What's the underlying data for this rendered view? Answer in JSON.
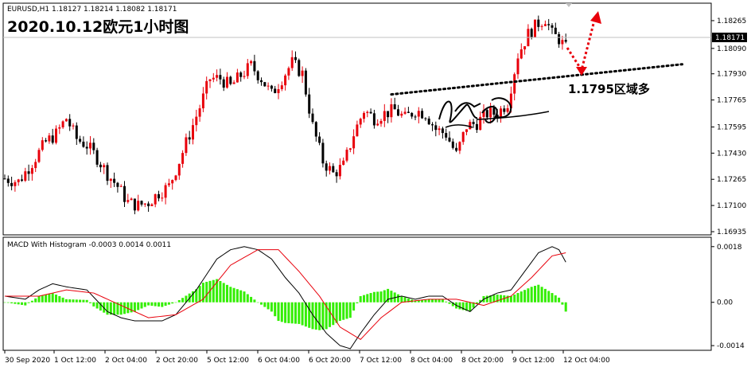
{
  "header": {
    "symbol_line": "EURUSD,H1  1.18127 1.18214 1.18082 1.18171",
    "title": "2020.10.12欧元1小时图",
    "annotation": "1.1795区域多",
    "current_price": "1.18171"
  },
  "macd": {
    "label": "MACD With Histogram -0.0003 0.0014 0.0011"
  },
  "colors": {
    "bull": "#e8000b",
    "bear": "#000000",
    "histogram": "#33ee00",
    "signal": "#e8000b",
    "macd_line": "#000000",
    "arrow": "#e8000b",
    "price_box": "#000000"
  },
  "chart_data": [
    {
      "type": "candlestick",
      "title": "",
      "ylim": [
        1.16935,
        1.18355
      ],
      "y_ticks": [
        1.18265,
        1.1809,
        1.1793,
        1.17765,
        1.17595,
        1.1743,
        1.17265,
        1.171,
        1.16935
      ],
      "x_ticks": [
        "30 Sep 2020",
        "1 Oct 12:00",
        "2 Oct 04:00",
        "2 Oct 20:00",
        "5 Oct 12:00",
        "6 Oct 04:00",
        "6 Oct 20:00",
        "7 Oct 12:00",
        "8 Oct 04:00",
        "8 Oct 20:00",
        "9 Oct 12:00",
        "12 Oct 04:00"
      ],
      "close_path": [
        [
          0,
          1.1727
        ],
        [
          4,
          1.1725
        ],
        [
          8,
          1.1737
        ],
        [
          12,
          1.175
        ],
        [
          15,
          1.1755
        ],
        [
          18,
          1.1765
        ],
        [
          21,
          1.1752
        ],
        [
          24,
          1.1748
        ],
        [
          27,
          1.174
        ],
        [
          30,
          1.173
        ],
        [
          33,
          1.1722
        ],
        [
          36,
          1.1712
        ],
        [
          39,
          1.171
        ],
        [
          42,
          1.1712
        ],
        [
          45,
          1.1718
        ],
        [
          48,
          1.1722
        ],
        [
          51,
          1.1738
        ],
        [
          54,
          1.1755
        ],
        [
          57,
          1.1772
        ],
        [
          60,
          1.179
        ],
        [
          63,
          1.179
        ],
        [
          66,
          1.1785
        ],
        [
          69,
          1.1792
        ],
        [
          72,
          1.1798
        ],
        [
          75,
          1.179
        ],
        [
          78,
          1.178
        ],
        [
          81,
          1.179
        ],
        [
          84,
          1.18
        ],
        [
          87,
          1.1793
        ],
        [
          90,
          1.176
        ],
        [
          93,
          1.1738
        ],
        [
          96,
          1.173
        ],
        [
          99,
          1.1735
        ],
        [
          102,
          1.1755
        ],
        [
          105,
          1.177
        ],
        [
          108,
          1.1765
        ],
        [
          111,
          1.1768
        ],
        [
          114,
          1.177
        ],
        [
          117,
          1.1765
        ],
        [
          120,
          1.177
        ],
        [
          123,
          1.1768
        ],
        [
          126,
          1.1758
        ],
        [
          129,
          1.1755
        ],
        [
          132,
          1.1742
        ],
        [
          135,
          1.176
        ],
        [
          138,
          1.1762
        ],
        [
          141,
          1.1768
        ],
        [
          144,
          1.1768
        ],
        [
          147,
          1.1775
        ],
        [
          150,
          1.1805
        ],
        [
          153,
          1.1818
        ],
        [
          156,
          1.1825
        ],
        [
          158,
          1.1828
        ],
        [
          160,
          1.1818
        ],
        [
          162,
          1.1815
        ],
        [
          164,
          1.1809
        ]
      ],
      "resistance_line": [
        [
          113,
          1.178
        ],
        [
          205,
          1.1799
        ]
      ],
      "current_price": 1.18171,
      "annotation": "1.1795区域多"
    },
    {
      "type": "macd",
      "title": "MACD With Histogram -0.0003 0.0014 0.0011",
      "ylim": [
        -0.0015,
        0.002
      ],
      "y_ticks": [
        0.0018,
        0.0,
        -0.0014
      ],
      "macd_path": [
        [
          0,
          0.0002
        ],
        [
          6,
          0.0001
        ],
        [
          10,
          0.0004
        ],
        [
          14,
          0.0006
        ],
        [
          18,
          0.0005
        ],
        [
          24,
          0.0004
        ],
        [
          30,
          -0.0003
        ],
        [
          34,
          -0.0005
        ],
        [
          38,
          -0.0006
        ],
        [
          42,
          -0.0006
        ],
        [
          46,
          -0.0006
        ],
        [
          50,
          -0.0004
        ],
        [
          56,
          0.0004
        ],
        [
          62,
          0.0014
        ],
        [
          66,
          0.0017
        ],
        [
          70,
          0.0018
        ],
        [
          74,
          0.0017
        ],
        [
          78,
          0.0014
        ],
        [
          82,
          0.0008
        ],
        [
          86,
          0.0003
        ],
        [
          90,
          -0.0004
        ],
        [
          94,
          -0.001
        ],
        [
          98,
          -0.0014
        ],
        [
          101,
          -0.0015
        ],
        [
          104,
          -0.001
        ],
        [
          108,
          -0.0004
        ],
        [
          112,
          0.0001
        ],
        [
          116,
          0.0002
        ],
        [
          120,
          0.0001
        ],
        [
          124,
          0.0002
        ],
        [
          128,
          0.0002
        ],
        [
          132,
          -0.0001
        ],
        [
          136,
          -0.0003
        ],
        [
          140,
          0.0001
        ],
        [
          144,
          0.0003
        ],
        [
          148,
          0.0004
        ],
        [
          152,
          0.001
        ],
        [
          156,
          0.0016
        ],
        [
          160,
          0.0018
        ],
        [
          162,
          0.0017
        ],
        [
          164,
          0.0013
        ]
      ],
      "signal_path": [
        [
          0,
          0.0002
        ],
        [
          10,
          0.0002
        ],
        [
          18,
          0.0004
        ],
        [
          26,
          0.0003
        ],
        [
          34,
          -0.0001
        ],
        [
          42,
          -0.0005
        ],
        [
          50,
          -0.0004
        ],
        [
          58,
          0.0001
        ],
        [
          66,
          0.0012
        ],
        [
          74,
          0.0017
        ],
        [
          80,
          0.0017
        ],
        [
          86,
          0.001
        ],
        [
          92,
          0.0002
        ],
        [
          98,
          -0.0008
        ],
        [
          104,
          -0.0012
        ],
        [
          110,
          -0.0005
        ],
        [
          116,
          0.0
        ],
        [
          124,
          0.0001
        ],
        [
          132,
          0.0001
        ],
        [
          140,
          -0.0001
        ],
        [
          148,
          0.0002
        ],
        [
          154,
          0.0008
        ],
        [
          160,
          0.0015
        ],
        [
          164,
          0.0016
        ]
      ]
    }
  ]
}
